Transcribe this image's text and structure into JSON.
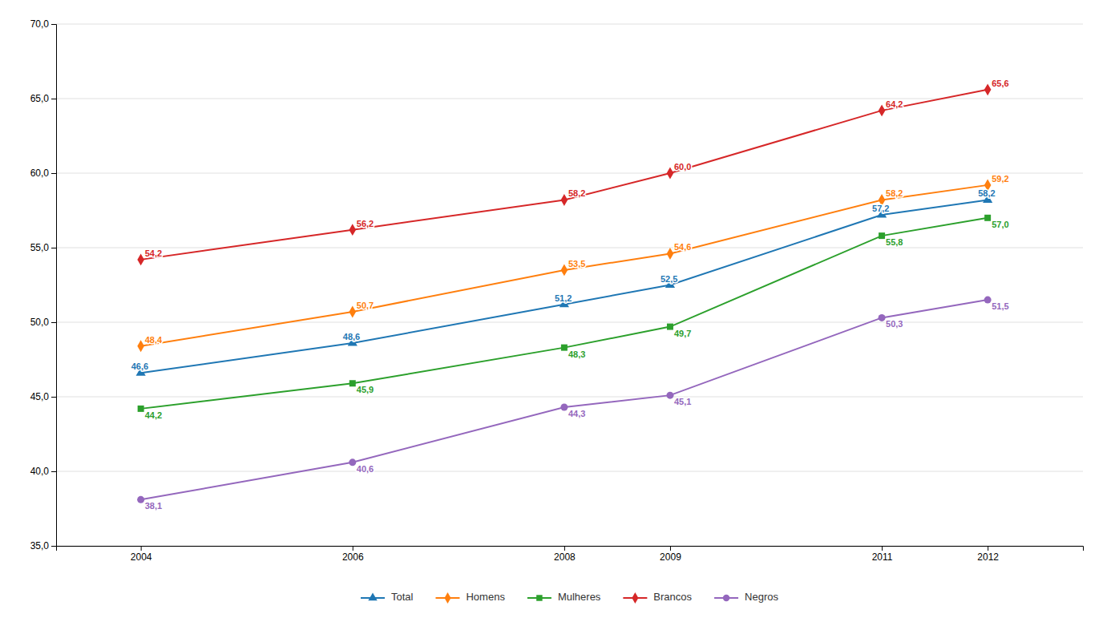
{
  "chart_data": {
    "type": "line",
    "x": [
      2004,
      2006,
      2008,
      2009,
      2011,
      2012
    ],
    "xlim": [
      2003.2,
      2012.9
    ],
    "xticks": [
      2004,
      2006,
      2008,
      2009,
      2011,
      2012
    ],
    "ylim": [
      35.0,
      70.0
    ],
    "yticks": [
      {
        "value": 35.0,
        "label": "35,0"
      },
      {
        "value": 40.0,
        "label": "40,0"
      },
      {
        "value": 45.0,
        "label": "45,0"
      },
      {
        "value": 50.0,
        "label": "50,0"
      },
      {
        "value": 55.0,
        "label": "55,0"
      },
      {
        "value": 60.0,
        "label": "60,0"
      },
      {
        "value": 65.0,
        "label": "65,0"
      },
      {
        "value": 70.0,
        "label": "70,0"
      }
    ],
    "grid": true,
    "legend": "bottom",
    "data_labels": true,
    "series": [
      {
        "name": "Total",
        "marker": "triangle",
        "values": [
          46.6,
          48.6,
          51.2,
          52.5,
          57.2,
          58.2
        ],
        "value_labels": [
          "46,6",
          "48,6",
          "51,2",
          "52,5",
          "57,2",
          "58,2"
        ]
      },
      {
        "name": "Homens",
        "marker": "diamond",
        "values": [
          48.4,
          50.7,
          53.5,
          54.6,
          58.2,
          59.2
        ],
        "value_labels": [
          "48,4",
          "50,7",
          "53,5",
          "54,6",
          "58,2",
          "59,2"
        ]
      },
      {
        "name": "Mulheres",
        "marker": "square",
        "values": [
          44.2,
          45.9,
          48.3,
          49.7,
          55.8,
          57.0
        ],
        "value_labels": [
          "44,2",
          "45,9",
          "48,3",
          "49,7",
          "55,8",
          "57,0"
        ]
      },
      {
        "name": "Brancos",
        "marker": "diamond",
        "values": [
          54.2,
          56.2,
          58.2,
          60.0,
          64.2,
          65.6
        ],
        "value_labels": [
          "54,2",
          "56,2",
          "58,2",
          "60,0",
          "64,2",
          "65,6"
        ]
      },
      {
        "name": "Negros",
        "marker": "circle",
        "values": [
          38.1,
          40.6,
          44.3,
          45.1,
          50.3,
          51.5
        ],
        "value_labels": [
          "38,1",
          "40,6",
          "44,3",
          "45,1",
          "50,3",
          "51,5"
        ]
      }
    ]
  }
}
